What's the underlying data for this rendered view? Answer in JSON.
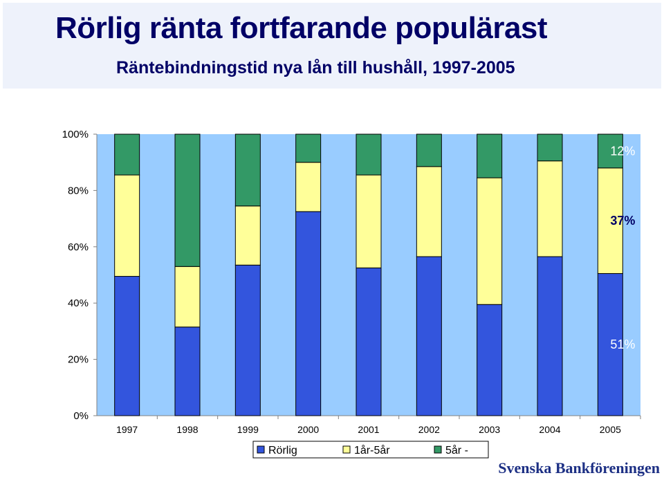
{
  "header": {
    "title": "Rörlig ränta fortfarande populärast",
    "subtitle": "Räntebindningstid nya lån till hushåll, 1997-2005"
  },
  "brand": "Svenska Bankföreningen",
  "colors": {
    "plot_bg": "#99ccff",
    "rorlig": "#3355dd",
    "mid": "#ffff99",
    "long": "#339966"
  },
  "chart_data": {
    "type": "bar",
    "stacked": true,
    "categories": [
      "1997",
      "1998",
      "1999",
      "2000",
      "2001",
      "2002",
      "2003",
      "2004",
      "2005"
    ],
    "series": [
      {
        "name": "Rörlig",
        "values": [
          49.5,
          31.5,
          53.5,
          72.5,
          52.5,
          56.5,
          39.5,
          56.5,
          50.5
        ]
      },
      {
        "name": "1år-5år",
        "values": [
          36,
          21.5,
          21,
          17.5,
          33,
          32,
          45,
          34,
          37.5
        ]
      },
      {
        "name": "5år -",
        "values": [
          14.5,
          47,
          25.5,
          10,
          14.5,
          11.5,
          15.5,
          9.5,
          12
        ]
      }
    ],
    "ylim": [
      0,
      100
    ],
    "yticks": [
      "0%",
      "20%",
      "40%",
      "60%",
      "80%",
      "100%"
    ],
    "annotations": [
      "51%",
      "37%",
      "12%"
    ],
    "legend_position": "bottom",
    "grid": false
  }
}
